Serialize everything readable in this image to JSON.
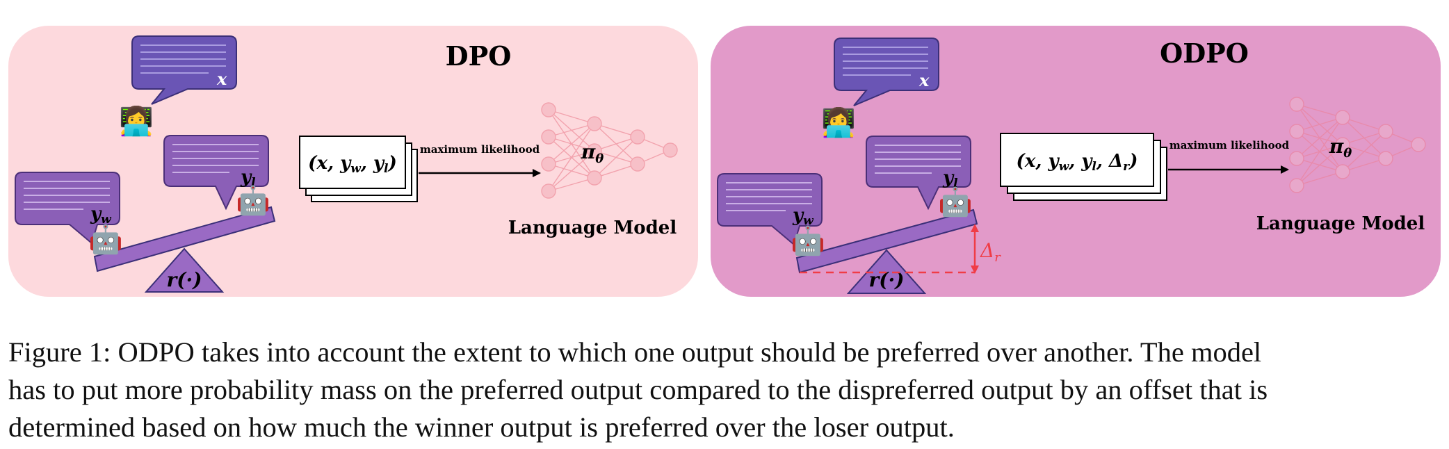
{
  "panels": [
    {
      "title": "DPO",
      "prompt_label": "x",
      "winner_label": "y",
      "winner_sub": "w",
      "loser_label": "y",
      "loser_sub": "l",
      "reward_label": "r(·)",
      "tuple_label": "(x, y",
      "tuple_w": "w",
      "tuple_mid": ", y",
      "tuple_l": "l",
      "tuple_end": ")",
      "arrow_label": "maximum likelihood",
      "policy_label": "π",
      "policy_sub": "θ",
      "model_label": "Language Model",
      "background": "#fdd9dd"
    },
    {
      "title": "ODPO",
      "prompt_label": "x",
      "winner_label": "y",
      "winner_sub": "w",
      "loser_label": "y",
      "loser_sub": "l",
      "reward_label": "r(·)",
      "tuple_label": "(x, y",
      "tuple_w": "w",
      "tuple_mid": ", y",
      "tuple_l": "l",
      "tuple_mid2": ", Δ",
      "tuple_r": "r",
      "tuple_end": ")",
      "arrow_label": "maximum likelihood",
      "policy_label": "π",
      "policy_sub": "θ",
      "model_label": "Language Model",
      "offset_label": "Δ",
      "offset_sub": "r",
      "background": "#e29ac9",
      "offset_color": "#f03c46"
    }
  ],
  "colors": {
    "bubble_fill": "#8b5fb7",
    "bubble_stroke": "#4b2f78",
    "prompt_fill": "#6a55b5",
    "seesaw_fill": "#9a6ac4",
    "network_stroke": "#f2a2ad"
  },
  "icons": {
    "user": "woman-technologist-icon",
    "robot": "robot-icon"
  },
  "caption": {
    "line1": "Figure 1: ODPO takes into account the extent to which one output should be preferred over another. The model",
    "line2": "has to put more probability mass on the preferred output compared to the dispreferred output by an offset that is",
    "line3": "determined based on how much the winner output is preferred over the loser output."
  }
}
